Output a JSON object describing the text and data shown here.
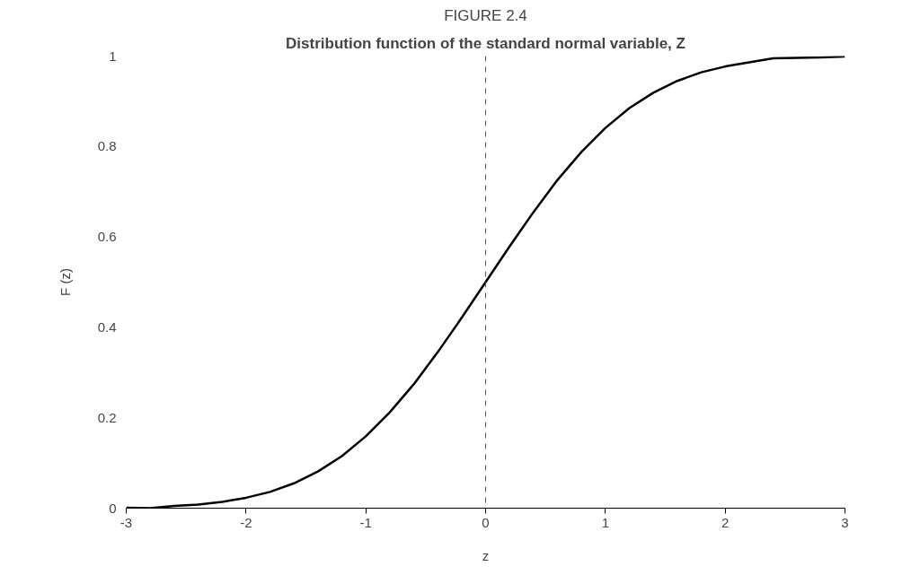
{
  "chart_data": {
    "type": "line",
    "title": "FIGURE 2.4",
    "subtitle": "Distribution function of the standard normal variable, Z",
    "xlabel": "z",
    "ylabel": "F (z)",
    "x": [
      -3,
      -2.8,
      -2.6,
      -2.4,
      -2.2,
      -2,
      -1.8,
      -1.6,
      -1.4,
      -1.2,
      -1,
      -0.8,
      -0.6,
      -0.4,
      -0.2,
      0,
      0.2,
      0.4,
      0.6,
      0.8,
      1,
      1.2,
      1.4,
      1.6,
      1.8,
      2,
      2.2,
      2.4,
      2.6,
      2.8,
      3
    ],
    "series": [
      {
        "color": "#000000",
        "values": [
          0.001,
          0.0,
          0.005,
          0.008,
          0.014,
          0.023,
          0.036,
          0.055,
          0.081,
          0.115,
          0.159,
          0.212,
          0.274,
          0.345,
          0.421,
          0.5,
          0.579,
          0.655,
          0.726,
          0.788,
          0.841,
          0.885,
          0.919,
          0.945,
          0.964,
          0.977,
          0.986,
          0.995,
          0.996,
          0.997,
          0.999
        ]
      }
    ],
    "xlim": [
      -3,
      3
    ],
    "ylim": [
      0,
      1
    ],
    "xticks": [
      -3,
      -2,
      -1,
      0,
      1,
      2,
      3
    ],
    "yticks": [
      0,
      0.2,
      0.4,
      0.6,
      0.8,
      1
    ],
    "ref_lines": [
      {
        "axis": "x",
        "value": 0,
        "color": "#555555",
        "line_style": "dashed"
      }
    ],
    "grid": false,
    "marker": "none",
    "line_style": "solid"
  }
}
